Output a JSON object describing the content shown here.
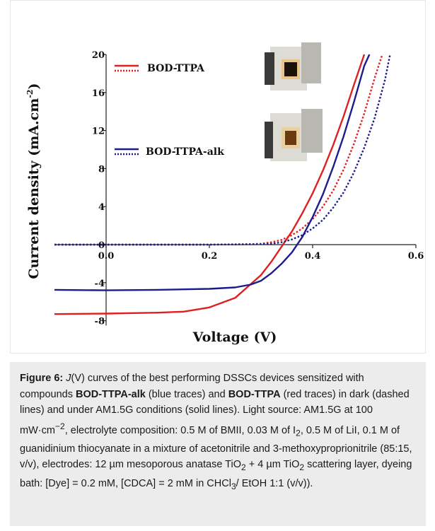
{
  "chart_data": {
    "type": "line",
    "xlabel": "Voltage (V)",
    "ylabel": "Current density (mA.cm",
    "ylabel_sup": "-2",
    "ylabel_end": ")",
    "xlim": [
      -0.1,
      0.6
    ],
    "ylim": [
      -8.5,
      20
    ],
    "x_ticks": [
      "0.0",
      "0.2",
      "0.4",
      "0.6"
    ],
    "x_tick_values": [
      0.0,
      0.2,
      0.4,
      0.6
    ],
    "y_ticks": [
      "-8",
      "-4",
      "0",
      "4",
      "8",
      "12",
      "16",
      "20"
    ],
    "y_tick_values": [
      -8,
      -4,
      0,
      4,
      8,
      12,
      16,
      20
    ],
    "grid": false,
    "legend": [
      {
        "label": "BOD-TTPA",
        "color": "#e02020"
      },
      {
        "label": "BOD-TTPA-alk",
        "color": "#1c1c8c"
      }
    ],
    "series": [
      {
        "name": "BOD-TTPA",
        "condition": "light",
        "style": "solid",
        "color": "#e02020",
        "x": [
          -0.1,
          0.0,
          0.1,
          0.15,
          0.2,
          0.25,
          0.3,
          0.32,
          0.34,
          0.36,
          0.38,
          0.4,
          0.42,
          0.44,
          0.46,
          0.48,
          0.5
        ],
        "y": [
          -7.3,
          -7.25,
          -7.15,
          -7.05,
          -6.6,
          -5.6,
          -3.2,
          -1.8,
          -0.2,
          1.4,
          3.3,
          5.4,
          7.8,
          10.5,
          13.5,
          16.8,
          20
        ]
      },
      {
        "name": "BOD-TTPA",
        "condition": "dark",
        "style": "dashed",
        "color": "#e02020",
        "x": [
          -0.1,
          0.0,
          0.1,
          0.2,
          0.28,
          0.3,
          0.32,
          0.34,
          0.36,
          0.38,
          0.4,
          0.42,
          0.44,
          0.46,
          0.48,
          0.5,
          0.52,
          0.535
        ],
        "y": [
          0,
          0,
          0,
          0,
          0.05,
          0.1,
          0.25,
          0.5,
          1.0,
          1.7,
          2.7,
          4.0,
          5.7,
          7.9,
          10.6,
          13.8,
          17.5,
          20
        ]
      },
      {
        "name": "BOD-TTPA-alk",
        "condition": "light",
        "style": "solid",
        "color": "#1c1c8c",
        "x": [
          -0.1,
          0.0,
          0.1,
          0.2,
          0.25,
          0.28,
          0.3,
          0.32,
          0.34,
          0.36,
          0.38,
          0.4,
          0.42,
          0.44,
          0.46,
          0.48,
          0.5,
          0.51
        ],
        "y": [
          -4.75,
          -4.8,
          -4.75,
          -4.65,
          -4.5,
          -4.2,
          -3.8,
          -3.0,
          -2.0,
          -0.8,
          0.8,
          2.9,
          5.3,
          8.2,
          11.4,
          15.0,
          18.8,
          20
        ]
      },
      {
        "name": "BOD-TTPA-alk",
        "condition": "dark",
        "style": "dashed",
        "color": "#1c1c8c",
        "x": [
          -0.1,
          0.0,
          0.1,
          0.2,
          0.3,
          0.32,
          0.34,
          0.36,
          0.38,
          0.4,
          0.42,
          0.44,
          0.46,
          0.48,
          0.5,
          0.52,
          0.54,
          0.55
        ],
        "y": [
          0,
          0,
          0,
          0,
          0.05,
          0.1,
          0.25,
          0.55,
          1.0,
          1.7,
          2.6,
          3.9,
          5.5,
          7.6,
          10.2,
          13.3,
          17.3,
          20
        ]
      }
    ]
  },
  "caption": {
    "label": "Figure 6:",
    "text_italic_j": "J",
    "t1": "(V) curves of the best performing DSSCs devices sensi­tized with compounds ",
    "b1": "BOD-TTPA-alk",
    "t2": " (blue traces) and ",
    "b2": "BOD-TTPA",
    "t3": " (red traces) in dark (dashed lines) and under AM1.5G conditions (solid lines). Light source: AM1.5G at 100 mW·cm",
    "sup1": "−2",
    "t4": ", electrolyte composition: 0.5 M of BMII, 0.03 M of I",
    "sub1": "2",
    "t5": ", 0.5 M of LiI, 0.1 M of guanidinium thio­cyanate in a mixture of acetonitrile and 3-methoxyproprionitrile (85:15, v/v), electrodes: 12 µm mesoporous anatase TiO",
    "sub2": "2",
    "t6": " + 4 µm TiO",
    "sub3": "2",
    "t7": " scat­tering layer, dyeing bath: [Dye] = 0.2 mM, [CDCA] = 2 mM in CHCl",
    "sub4": "3",
    "t8": "/ EtOH 1:1 (v/v))."
  }
}
